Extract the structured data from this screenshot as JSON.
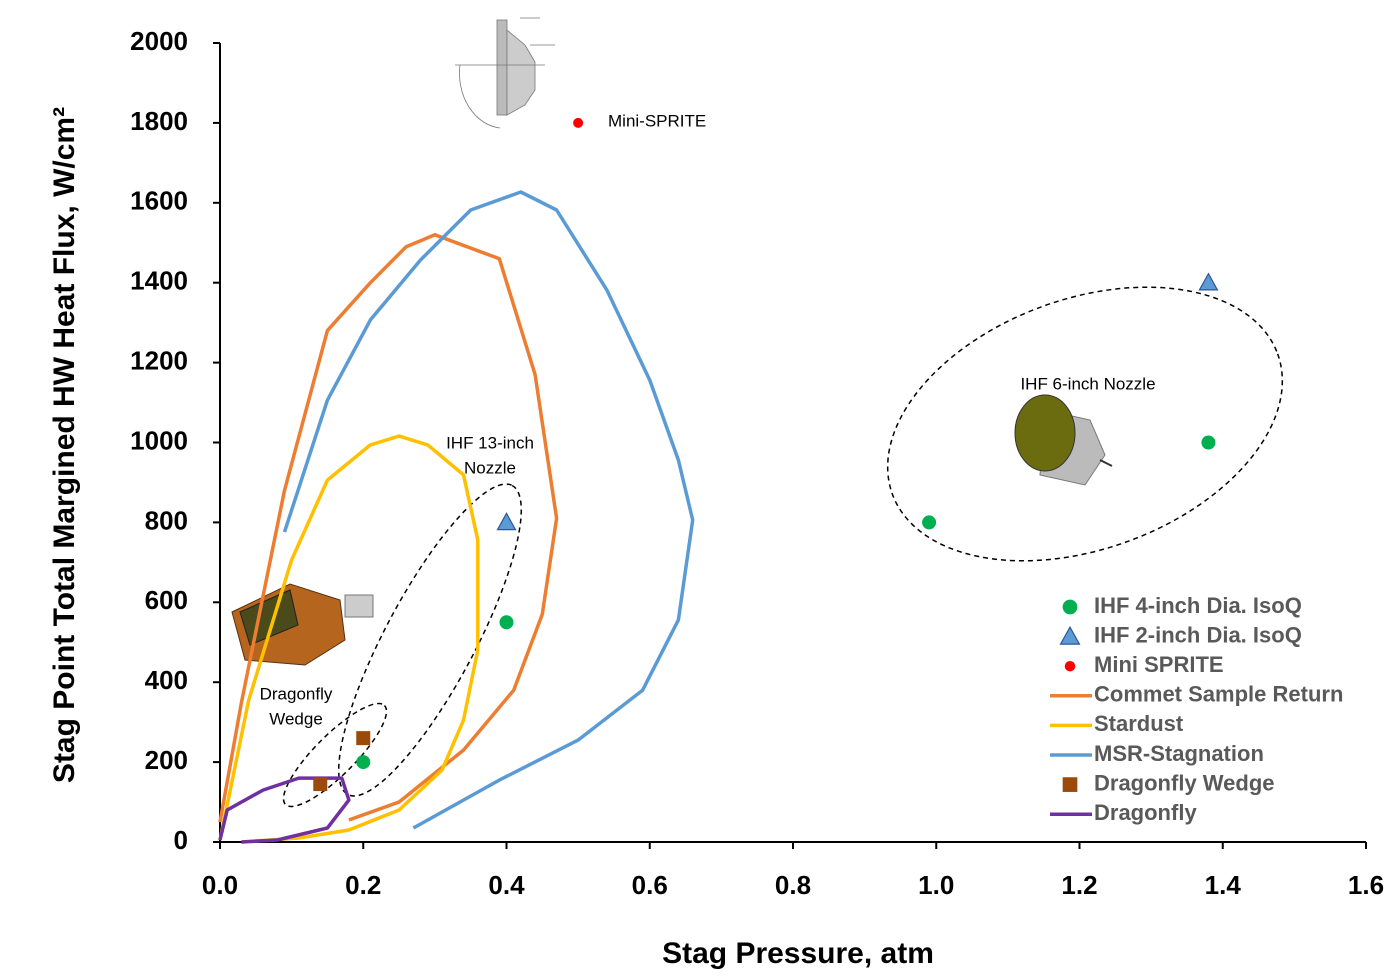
{
  "chart_data": {
    "type": "scatter",
    "x_label": "Stag Pressure, atm",
    "y_label": "Stag Point Total Margined HW Heat Flux, W/cm²",
    "xlim": [
      0,
      1.6
    ],
    "xticks": [
      {
        "value": 0,
        "label": "0.0"
      },
      0.2,
      0.4,
      0.6,
      0.8,
      {
        "value": 1,
        "label": "1.0"
      },
      1.2,
      1.4,
      1.6
    ],
    "ylim": [
      0,
      2000
    ],
    "yticks": [
      0,
      200,
      400,
      600,
      800,
      1000,
      1200,
      1400,
      1600,
      1800,
      2000
    ],
    "legend": "lower right",
    "series": [
      {
        "name": "IHF 4-inch Dia. IsoQ",
        "mode": "marker",
        "marker": "circle",
        "color": "#00B050",
        "x": [
          0.2,
          0.4,
          0.99,
          1.38
        ],
        "values": [
          200,
          550,
          800,
          1000
        ]
      },
      {
        "name": "IHF 2-inch Dia. IsoQ",
        "mode": "marker",
        "marker": "triangle",
        "color": "#5B9BD5",
        "x": [
          0.4,
          1.38
        ],
        "values": [
          800,
          1400
        ]
      },
      {
        "name": "Mini SPRITE",
        "mode": "marker",
        "marker": "dot",
        "color": "#FF0000",
        "x": [
          0.5
        ],
        "values": [
          1800
        ]
      },
      {
        "name": "Commet Sample Return",
        "mode": "line",
        "color": "#ED7D31",
        "x": [
          0,
          0.03,
          0.09,
          0.15,
          0.21,
          0.26,
          0.3,
          0.39,
          0.44,
          0.47,
          0.45,
          0.41,
          0.34,
          0.25,
          0.18
        ],
        "values": [
          50,
          350,
          880,
          1280,
          1400,
          1490,
          1520,
          1460,
          1170,
          810,
          570,
          380,
          230,
          100,
          55
        ]
      },
      {
        "name": "Stardust",
        "mode": "line",
        "color": "#FFC000",
        "x": [
          0,
          0.04,
          0.1,
          0.15,
          0.21,
          0.25,
          0.29,
          0.34,
          0.36,
          0.36,
          0.34,
          0.31,
          0.25,
          0.18,
          0.11,
          0.03
        ],
        "values": [
          5,
          355,
          706,
          906,
          994,
          1016,
          994,
          919,
          756,
          481,
          305,
          180,
          80,
          30,
          10,
          0
        ]
      },
      {
        "name": "MSR-Stagnation",
        "mode": "line",
        "color": "#5B9BD5",
        "x": [
          0.09,
          0.15,
          0.21,
          0.28,
          0.35,
          0.42,
          0.47,
          0.54,
          0.6,
          0.64,
          0.66,
          0.64,
          0.59,
          0.5,
          0.39,
          0.27
        ],
        "values": [
          776,
          1106,
          1307,
          1457,
          1582,
          1627,
          1582,
          1382,
          1156,
          956,
          806,
          556,
          380,
          255,
          155,
          35
        ]
      },
      {
        "name": "Dragonfly Wedge",
        "mode": "marker",
        "marker": "square",
        "color": "#9C4A0A",
        "x": [
          0.14,
          0.2
        ],
        "values": [
          145,
          260
        ]
      },
      {
        "name": "Dragonfly",
        "mode": "line",
        "color": "#7030A0",
        "x": [
          0,
          0.01,
          0.06,
          0.11,
          0.17,
          0.18,
          0.15,
          0.08,
          0.03
        ],
        "values": [
          5,
          80,
          130,
          160,
          160,
          105,
          35,
          5,
          0
        ]
      }
    ],
    "annotations": [
      [
        "Mini-SPRITE"
      ],
      [
        "IHF 13-inch",
        "Nozzle"
      ],
      [
        "Dragonfly",
        "Wedge"
      ],
      [
        "IHF 6-inch Nozzle"
      ]
    ]
  }
}
